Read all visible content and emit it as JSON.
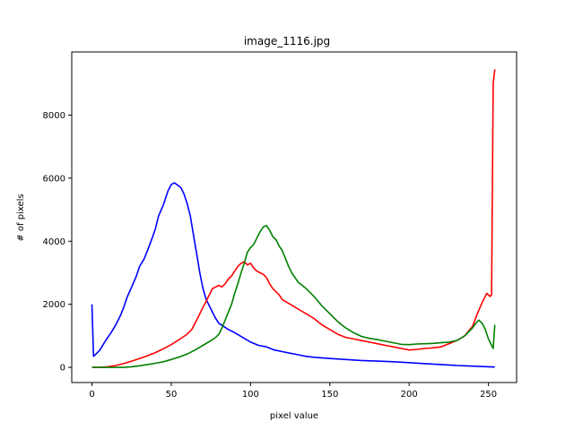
{
  "chart_data": {
    "type": "line",
    "title": "image_1116.jpg",
    "xlabel": "pixel value",
    "ylabel": "# of pixels",
    "xlim": [
      -12.75,
      267.75
    ],
    "ylim": [
      -480,
      10000
    ],
    "xticks": [
      0,
      50,
      100,
      150,
      200,
      250
    ],
    "yticks": [
      0,
      2000,
      4000,
      6000,
      8000
    ],
    "grid": false,
    "legend": "none",
    "series": [
      {
        "color": "#0000ff",
        "x": [
          0,
          1,
          3,
          5,
          8,
          10,
          12,
          15,
          18,
          20,
          22,
          25,
          28,
          30,
          33,
          35,
          38,
          40,
          42,
          45,
          48,
          50,
          52,
          54,
          56,
          58,
          60,
          62,
          64,
          66,
          68,
          70,
          72,
          74,
          76,
          78,
          80,
          83,
          86,
          90,
          95,
          100,
          105,
          110,
          115,
          120,
          125,
          130,
          135,
          140,
          150,
          160,
          170,
          180,
          190,
          200,
          210,
          220,
          230,
          240,
          250,
          254
        ],
        "y": [
          2000,
          350,
          450,
          550,
          800,
          950,
          1100,
          1350,
          1650,
          1900,
          2200,
          2550,
          2900,
          3200,
          3450,
          3700,
          4100,
          4400,
          4800,
          5150,
          5600,
          5800,
          5850,
          5780,
          5700,
          5500,
          5200,
          4800,
          4200,
          3600,
          3000,
          2500,
          2150,
          1950,
          1750,
          1550,
          1400,
          1300,
          1200,
          1100,
          950,
          800,
          700,
          650,
          550,
          500,
          450,
          400,
          350,
          320,
          280,
          250,
          220,
          200,
          180,
          150,
          120,
          90,
          60,
          40,
          20,
          10
        ]
      },
      {
        "color": "#ff0000",
        "x": [
          0,
          5,
          10,
          15,
          20,
          25,
          30,
          35,
          40,
          45,
          50,
          55,
          60,
          63,
          66,
          68,
          70,
          72,
          74,
          76,
          78,
          80,
          82,
          84,
          86,
          88,
          90,
          92,
          94,
          96,
          98,
          100,
          102,
          104,
          106,
          108,
          110,
          112,
          114,
          116,
          118,
          120,
          125,
          130,
          135,
          140,
          145,
          150,
          155,
          160,
          165,
          170,
          175,
          180,
          185,
          190,
          195,
          200,
          205,
          210,
          215,
          220,
          225,
          230,
          235,
          240,
          243,
          246,
          249,
          251,
          252,
          253,
          254
        ],
        "y": [
          0,
          0,
          20,
          60,
          120,
          200,
          280,
          370,
          470,
          590,
          720,
          880,
          1050,
          1200,
          1500,
          1700,
          1900,
          2100,
          2300,
          2500,
          2550,
          2600,
          2550,
          2650,
          2800,
          2900,
          3050,
          3200,
          3300,
          3350,
          3250,
          3300,
          3150,
          3050,
          3000,
          2950,
          2850,
          2650,
          2500,
          2400,
          2300,
          2150,
          2000,
          1850,
          1700,
          1550,
          1350,
          1200,
          1050,
          950,
          900,
          850,
          800,
          750,
          700,
          650,
          600,
          550,
          570,
          600,
          620,
          650,
          750,
          850,
          1000,
          1300,
          1700,
          2050,
          2350,
          2250,
          2300,
          9000,
          9450
        ]
      },
      {
        "color": "#008000",
        "x": [
          0,
          10,
          20,
          25,
          30,
          35,
          40,
          45,
          50,
          55,
          60,
          65,
          70,
          75,
          78,
          80,
          82,
          84,
          86,
          88,
          90,
          92,
          94,
          96,
          98,
          100,
          102,
          104,
          106,
          108,
          110,
          112,
          114,
          116,
          118,
          120,
          122,
          124,
          126,
          128,
          130,
          135,
          140,
          145,
          150,
          155,
          160,
          165,
          170,
          175,
          180,
          185,
          190,
          195,
          200,
          205,
          210,
          215,
          220,
          225,
          230,
          235,
          238,
          240,
          242,
          244,
          246,
          248,
          250,
          252,
          253,
          254
        ],
        "y": [
          0,
          0,
          0,
          20,
          50,
          90,
          130,
          180,
          250,
          330,
          420,
          550,
          700,
          850,
          950,
          1050,
          1250,
          1500,
          1750,
          2000,
          2350,
          2650,
          3000,
          3300,
          3650,
          3800,
          3900,
          4100,
          4300,
          4450,
          4500,
          4350,
          4150,
          4050,
          3850,
          3700,
          3450,
          3200,
          3000,
          2850,
          2700,
          2500,
          2250,
          1950,
          1700,
          1450,
          1250,
          1100,
          980,
          920,
          880,
          830,
          780,
          730,
          720,
          740,
          750,
          760,
          780,
          800,
          850,
          1000,
          1150,
          1250,
          1400,
          1500,
          1400,
          1200,
          900,
          700,
          600,
          1350
        ]
      }
    ]
  }
}
